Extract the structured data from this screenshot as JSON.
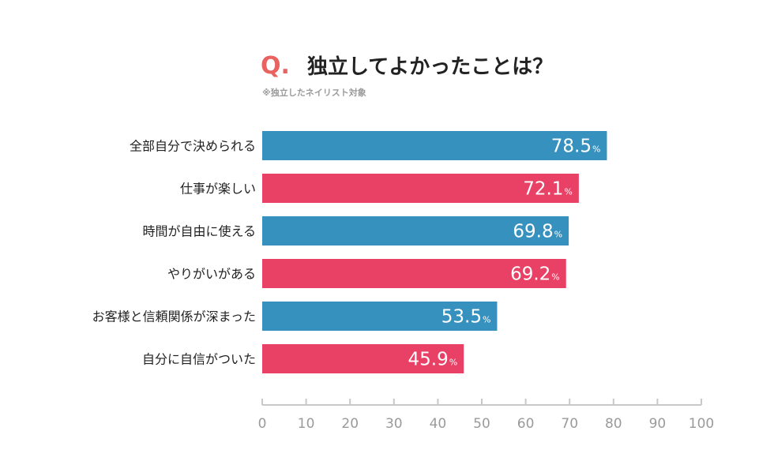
{
  "header": {
    "q_mark": "Q.",
    "title": "独立してよかったことは？",
    "note": "※独立したネイリスト対象"
  },
  "colors": {
    "blue": "#3691be",
    "pink": "#e84165",
    "q_mark": "#e8625f",
    "axis": "#c8c8c8"
  },
  "chart_data": {
    "type": "bar",
    "orientation": "horizontal",
    "title": "独立してよかったことは？",
    "subtitle": "※独立したネイリスト対象",
    "categories": [
      "全部自分で決められる",
      "仕事が楽しい",
      "時間が自由に使える",
      "やりがいがある",
      "お客様と信頼関係が深まった",
      "自分に自信がついた"
    ],
    "values": [
      78.5,
      72.1,
      69.8,
      69.2,
      53.5,
      45.9
    ],
    "value_labels": [
      "78.5",
      "72.1",
      "69.8",
      "69.2",
      "53.5",
      "45.9"
    ],
    "unit": "%",
    "bar_colors": [
      "#3691be",
      "#e84165",
      "#3691be",
      "#e84165",
      "#3691be",
      "#e84165"
    ],
    "xlim": [
      0,
      100
    ],
    "xticks": [
      0,
      10,
      20,
      30,
      40,
      50,
      60,
      70,
      80,
      90,
      100
    ],
    "xtick_labels": [
      "0",
      "10",
      "20",
      "30",
      "40",
      "50",
      "60",
      "70",
      "80",
      "90",
      "100"
    ],
    "xlabel": "",
    "ylabel": "",
    "grid": false
  }
}
